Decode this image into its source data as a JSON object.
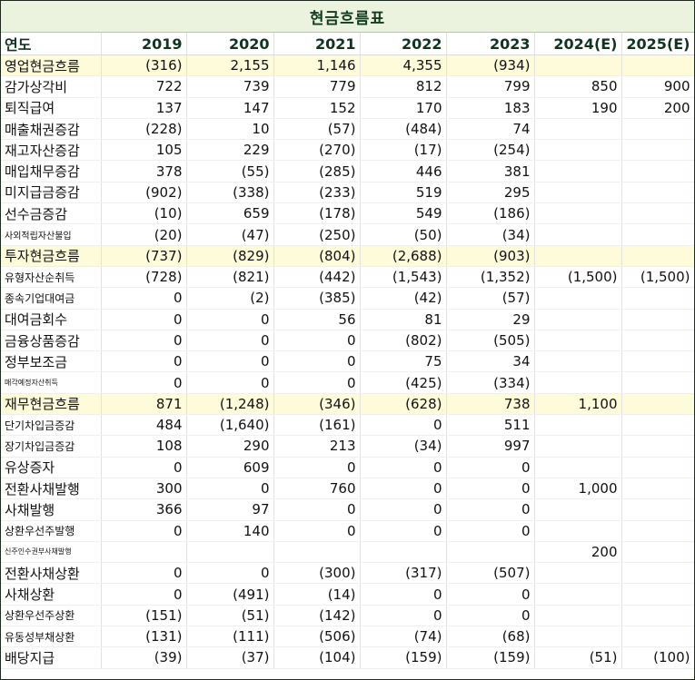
{
  "title": "현금흐름표",
  "header": [
    "연도",
    "2019",
    "2020",
    "2021",
    "2022",
    "2023",
    "2024(E)",
    "2025(E)"
  ],
  "rows": [
    {
      "label": "영업현금흐름",
      "section": true,
      "size": "",
      "values": [
        "(316)",
        "2,155",
        "1,146",
        "4,355",
        "(934)",
        "",
        ""
      ]
    },
    {
      "label": "감가상각비",
      "section": false,
      "size": "",
      "values": [
        "722",
        "739",
        "779",
        "812",
        "799",
        "850",
        "900"
      ]
    },
    {
      "label": "퇴직급여",
      "section": false,
      "size": "",
      "values": [
        "137",
        "147",
        "152",
        "170",
        "183",
        "190",
        "200"
      ]
    },
    {
      "label": "매출채권증감",
      "section": false,
      "size": "",
      "values": [
        "(228)",
        "10",
        "(57)",
        "(484)",
        "74",
        "",
        ""
      ]
    },
    {
      "label": "재고자산증감",
      "section": false,
      "size": "",
      "values": [
        "105",
        "229",
        "(270)",
        "(17)",
        "(254)",
        "",
        ""
      ]
    },
    {
      "label": "매입채무증감",
      "section": false,
      "size": "",
      "values": [
        "378",
        "(55)",
        "(285)",
        "446",
        "381",
        "",
        ""
      ]
    },
    {
      "label": "미지급금증감",
      "section": false,
      "size": "",
      "values": [
        "(902)",
        "(338)",
        "(233)",
        "519",
        "295",
        "",
        ""
      ]
    },
    {
      "label": "선수금증감",
      "section": false,
      "size": "",
      "values": [
        "(10)",
        "659",
        "(178)",
        "549",
        "(186)",
        "",
        ""
      ]
    },
    {
      "label": "사외적립자산불입",
      "section": false,
      "size": "s",
      "values": [
        "(20)",
        "(47)",
        "(250)",
        "(50)",
        "(34)",
        "",
        ""
      ]
    },
    {
      "label": "투자현금흐름",
      "section": true,
      "size": "",
      "values": [
        "(737)",
        "(829)",
        "(804)",
        "(2,688)",
        "(903)",
        "",
        ""
      ]
    },
    {
      "label": "유형자산순취득",
      "section": false,
      "size": "m",
      "values": [
        "(728)",
        "(821)",
        "(442)",
        "(1,543)",
        "(1,352)",
        "(1,500)",
        "(1,500)"
      ]
    },
    {
      "label": "종속기업대여금",
      "section": false,
      "size": "m",
      "values": [
        "0",
        "(2)",
        "(385)",
        "(42)",
        "(57)",
        "",
        ""
      ]
    },
    {
      "label": "대여금회수",
      "section": false,
      "size": "",
      "values": [
        "0",
        "0",
        "56",
        "81",
        "29",
        "",
        ""
      ]
    },
    {
      "label": "금융상품증감",
      "section": false,
      "size": "",
      "values": [
        "0",
        "0",
        "0",
        "(802)",
        "(505)",
        "",
        ""
      ]
    },
    {
      "label": "정부보조금",
      "section": false,
      "size": "",
      "values": [
        "0",
        "0",
        "0",
        "75",
        "34",
        "",
        ""
      ]
    },
    {
      "label": "매각예정자산취득",
      "section": false,
      "size": "xs",
      "values": [
        "0",
        "0",
        "0",
        "(425)",
        "(334)",
        "",
        ""
      ]
    },
    {
      "label": "재무현금흐름",
      "section": true,
      "size": "",
      "values": [
        "871",
        "(1,248)",
        "(346)",
        "(628)",
        "738",
        "1,100",
        ""
      ]
    },
    {
      "label": "단기차입금증감",
      "section": false,
      "size": "m",
      "values": [
        "484",
        "(1,640)",
        "(161)",
        "0",
        "511",
        "",
        ""
      ]
    },
    {
      "label": "장기차입금증감",
      "section": false,
      "size": "m",
      "values": [
        "108",
        "290",
        "213",
        "(34)",
        "997",
        "",
        ""
      ]
    },
    {
      "label": "유상증자",
      "section": false,
      "size": "",
      "values": [
        "0",
        "609",
        "0",
        "0",
        "0",
        "",
        ""
      ]
    },
    {
      "label": "전환사채발행",
      "section": false,
      "size": "",
      "values": [
        "300",
        "0",
        "760",
        "0",
        "0",
        "1,000",
        ""
      ]
    },
    {
      "label": "사채발행",
      "section": false,
      "size": "",
      "values": [
        "366",
        "97",
        "0",
        "0",
        "0",
        "",
        ""
      ]
    },
    {
      "label": "상환우선주발행",
      "section": false,
      "size": "m",
      "values": [
        "0",
        "140",
        "0",
        "0",
        "0",
        "",
        ""
      ]
    },
    {
      "label": "신주인수권부사채발행",
      "section": false,
      "size": "xs",
      "values": [
        "",
        "",
        "",
        "",
        "",
        "200",
        ""
      ]
    },
    {
      "label": "전환사채상환",
      "section": false,
      "size": "",
      "values": [
        "0",
        "0",
        "(300)",
        "(317)",
        "(507)",
        "",
        ""
      ]
    },
    {
      "label": "사채상환",
      "section": false,
      "size": "",
      "values": [
        "0",
        "(491)",
        "(14)",
        "0",
        "0",
        "",
        ""
      ]
    },
    {
      "label": "상환우선주상환",
      "section": false,
      "size": "m",
      "values": [
        "(151)",
        "(51)",
        "(142)",
        "0",
        "0",
        "",
        ""
      ]
    },
    {
      "label": "유동성부채상환",
      "section": false,
      "size": "m",
      "values": [
        "(131)",
        "(111)",
        "(506)",
        "(74)",
        "(68)",
        "",
        ""
      ]
    },
    {
      "label": "배당지급",
      "section": false,
      "size": "",
      "values": [
        "(39)",
        "(37)",
        "(104)",
        "(159)",
        "(159)",
        "(51)",
        "(100)"
      ]
    }
  ]
}
